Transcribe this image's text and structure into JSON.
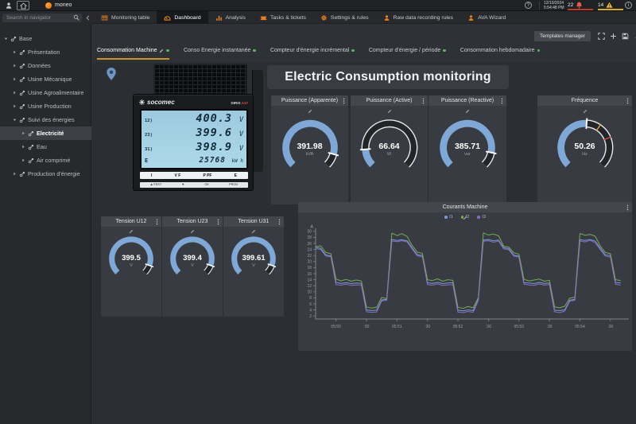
{
  "topbar": {
    "app_name": "moneo",
    "date": "12/10/2024",
    "time": "5:54:48 PM",
    "alarms": "22",
    "warnings": "14",
    "help_label": "?",
    "info_label": "i"
  },
  "nav": {
    "search_placeholder": "Search in navigator",
    "tabs": [
      {
        "label": "Monitoring table",
        "icon": "table",
        "active": false
      },
      {
        "label": "Dashboard",
        "icon": "gauge",
        "active": true
      },
      {
        "label": "Analysis",
        "icon": "bars",
        "active": false
      },
      {
        "label": "Tasks & tickets",
        "icon": "ticket",
        "active": false
      },
      {
        "label": "Settings & rules",
        "icon": "gear",
        "active": false
      },
      {
        "label": "Raw data recording rules",
        "icon": "person",
        "active": false
      },
      {
        "label": "AVA Wizard",
        "icon": "person",
        "active": false
      }
    ]
  },
  "sidebar": {
    "items": [
      {
        "label": "Base",
        "depth": 0,
        "caret": "down",
        "selected": false
      },
      {
        "label": "Présentation",
        "depth": 1,
        "caret": "right",
        "selected": false
      },
      {
        "label": "Données",
        "depth": 1,
        "caret": "right",
        "selected": false
      },
      {
        "label": "Usine Mécanique",
        "depth": 1,
        "caret": "right",
        "selected": false
      },
      {
        "label": "Usine Agroalimentaire",
        "depth": 1,
        "caret": "right",
        "selected": false
      },
      {
        "label": "Usine Production",
        "depth": 1,
        "caret": "right",
        "selected": false
      },
      {
        "label": "Suivi des énergies",
        "depth": 1,
        "caret": "down",
        "selected": false
      },
      {
        "label": "Electricité",
        "depth": 2,
        "caret": "right",
        "selected": true
      },
      {
        "label": "Eau",
        "depth": 2,
        "caret": "right",
        "selected": false
      },
      {
        "label": "Air comprimé",
        "depth": 2,
        "caret": "right",
        "selected": false
      },
      {
        "label": "Production d'énergie",
        "depth": 1,
        "caret": "right",
        "selected": false
      }
    ]
  },
  "toolbar": {
    "templates_manager_label": "Templates manager",
    "icons": [
      "expand",
      "plus",
      "save",
      "pin",
      "pencil",
      "trash"
    ]
  },
  "dash_tabs": [
    {
      "label": "Consommation Machine",
      "active": true,
      "editable": true
    },
    {
      "label": "Conso Energie instantanée",
      "active": false,
      "editable": false
    },
    {
      "label": "Compteur d'énergie incrémental",
      "active": false,
      "editable": false
    },
    {
      "label": "Compteur d'énergie / période",
      "active": false,
      "editable": false
    },
    {
      "label": "Consommation hebdomadaire",
      "active": false,
      "editable": false
    }
  ],
  "main": {
    "title": "Electric Consumption monitoring"
  },
  "device": {
    "brand": "socomec",
    "model": "DIRIS",
    "variant": "A17",
    "lcd_rows": [
      {
        "label": "12",
        "value": "400.3",
        "unit": "V"
      },
      {
        "label": "23",
        "value": "399.6",
        "unit": "V"
      },
      {
        "label": "31",
        "value": "398.9",
        "unit": "V"
      }
    ],
    "energy": {
      "label": "E",
      "value": "25768",
      "unit": "kW h"
    },
    "keys_row1": [
      "I",
      "V F",
      "P PF",
      "E"
    ],
    "keys_row2": [
      "▲/TEST",
      "▼",
      "OK",
      "PROG"
    ]
  },
  "colors": {
    "accent_orange": "#e8821e",
    "gauge_fill": "#7fa8d7",
    "green_dot": "#58b55a",
    "alarm_red": "#d9534f",
    "warn_yellow": "#e8b73c"
  },
  "gauges": [
    {
      "title": "Puissance (Apparente)",
      "value": "391.98",
      "unit": "kVA",
      "num": 391.98,
      "min": 0,
      "max": 440
    },
    {
      "title": "Puissance (Active)",
      "value": "66.64",
      "unit": "W",
      "num": 66.64,
      "min": 0,
      "max": 440
    },
    {
      "title": "Puissance (Reactive)",
      "value": "385.71",
      "unit": "var",
      "num": 385.71,
      "min": 0,
      "max": 440
    },
    {
      "title": "Fréquence",
      "value": "50.26",
      "unit": "Hz",
      "num": 50.26,
      "min": 40,
      "max": 60,
      "thresholds": [
        {
          "value": 52.5,
          "color": "#d9a93e"
        },
        {
          "value": 55,
          "color": "#c24b3a"
        }
      ]
    },
    {
      "title": "Tension U12",
      "value": "399.5",
      "unit": "V",
      "num": 399.5,
      "min": 0,
      "max": 440
    },
    {
      "title": "Tension U23",
      "value": "399.4",
      "unit": "V",
      "num": 399.4,
      "min": 0,
      "max": 440
    },
    {
      "title": "Tension U31",
      "value": "399.61",
      "unit": "V",
      "num": 399.61,
      "min": 0,
      "max": 440
    }
  ],
  "chart_data": {
    "type": "line",
    "title": "Courants Machine",
    "ylabel": "A",
    "ylim": [
      1,
      31
    ],
    "yticks": [
      2,
      4,
      6,
      8,
      10,
      12,
      14,
      16,
      18,
      20,
      22,
      24,
      26,
      28,
      30
    ],
    "x_seconds": [
      0,
      5,
      10,
      15,
      20,
      25,
      30,
      35,
      40,
      45,
      50,
      55,
      60,
      65,
      70,
      75,
      80,
      85,
      90,
      95,
      100,
      105,
      110,
      115,
      120,
      125,
      130,
      135,
      140,
      145,
      150,
      155,
      160,
      165,
      170,
      175,
      180,
      185,
      190,
      195,
      200,
      205,
      210,
      215,
      220,
      225,
      230,
      235,
      240,
      245,
      250,
      255,
      260,
      265,
      270,
      275,
      280,
      285,
      290,
      295,
      300
    ],
    "x_ticks": [
      {
        "t": 20,
        "label": "05:50"
      },
      {
        "t": 50,
        "label": ":30"
      },
      {
        "t": 80,
        "label": "05:51"
      },
      {
        "t": 110,
        "label": ":30"
      },
      {
        "t": 140,
        "label": "05:52"
      },
      {
        "t": 170,
        "label": ":30"
      },
      {
        "t": 200,
        "label": "05:53"
      },
      {
        "t": 230,
        "label": ":30"
      },
      {
        "t": 260,
        "label": "05:54"
      },
      {
        "t": 290,
        "label": ":30"
      }
    ],
    "legend_position": "top-center",
    "grid": false,
    "series": [
      {
        "name": "I1",
        "color": "#6f9ed6",
        "values": [
          24.7,
          24.4,
          22.2,
          21.9,
          13.1,
          12.8,
          13.0,
          12.7,
          12.9,
          12.8,
          4.0,
          3.8,
          3.9,
          7.3,
          7.5,
          27.3,
          27.0,
          27.2,
          26.9,
          24.5,
          22.3,
          22.0,
          13.0,
          12.8,
          13.1,
          12.7,
          12.9,
          13.0,
          3.9,
          3.7,
          4.0,
          3.8,
          7.4,
          27.1,
          27.3,
          26.9,
          27.1,
          24.6,
          24.3,
          22.1,
          21.9,
          13.0,
          12.9,
          12.7,
          13.1,
          12.8,
          12.9,
          3.9,
          3.8,
          4.0,
          7.2,
          7.5,
          27.2,
          27.0,
          27.3,
          26.8,
          24.5,
          22.2,
          22.0,
          13.1,
          12.9
        ]
      },
      {
        "name": "I2",
        "color": "#79a857",
        "values": [
          24.9,
          25.2,
          23.0,
          22.6,
          14.2,
          13.6,
          14.1,
          13.5,
          13.9,
          13.6,
          5.0,
          4.6,
          4.9,
          8.1,
          7.8,
          29.4,
          28.6,
          29.2,
          28.3,
          25.3,
          23.1,
          22.7,
          14.0,
          13.7,
          14.3,
          13.5,
          14.0,
          13.8,
          4.9,
          4.5,
          5.1,
          4.7,
          8.0,
          29.5,
          28.8,
          29.1,
          28.5,
          25.1,
          24.8,
          22.9,
          22.5,
          14.1,
          13.6,
          13.9,
          14.2,
          13.5,
          13.8,
          5.0,
          4.7,
          5.2,
          7.9,
          8.2,
          29.3,
          28.7,
          29.0,
          28.4,
          25.2,
          23.0,
          22.6,
          14.0,
          13.7
        ]
      },
      {
        "name": "I3",
        "color": "#8f6cc4",
        "values": [
          24.3,
          24.0,
          21.8,
          21.6,
          12.4,
          12.2,
          12.5,
          12.1,
          12.3,
          12.2,
          3.4,
          3.2,
          3.3,
          7.0,
          7.2,
          26.8,
          26.6,
          26.9,
          26.5,
          24.1,
          21.9,
          21.6,
          12.4,
          12.2,
          12.6,
          12.1,
          12.3,
          12.4,
          3.3,
          3.1,
          3.5,
          3.2,
          7.1,
          26.7,
          26.9,
          26.4,
          26.8,
          24.2,
          23.9,
          21.8,
          21.5,
          12.5,
          12.3,
          12.1,
          12.6,
          12.2,
          12.4,
          3.4,
          3.1,
          3.6,
          6.9,
          7.2,
          26.8,
          26.5,
          27.0,
          26.3,
          24.0,
          21.8,
          21.5,
          12.5,
          12.2
        ]
      }
    ]
  }
}
